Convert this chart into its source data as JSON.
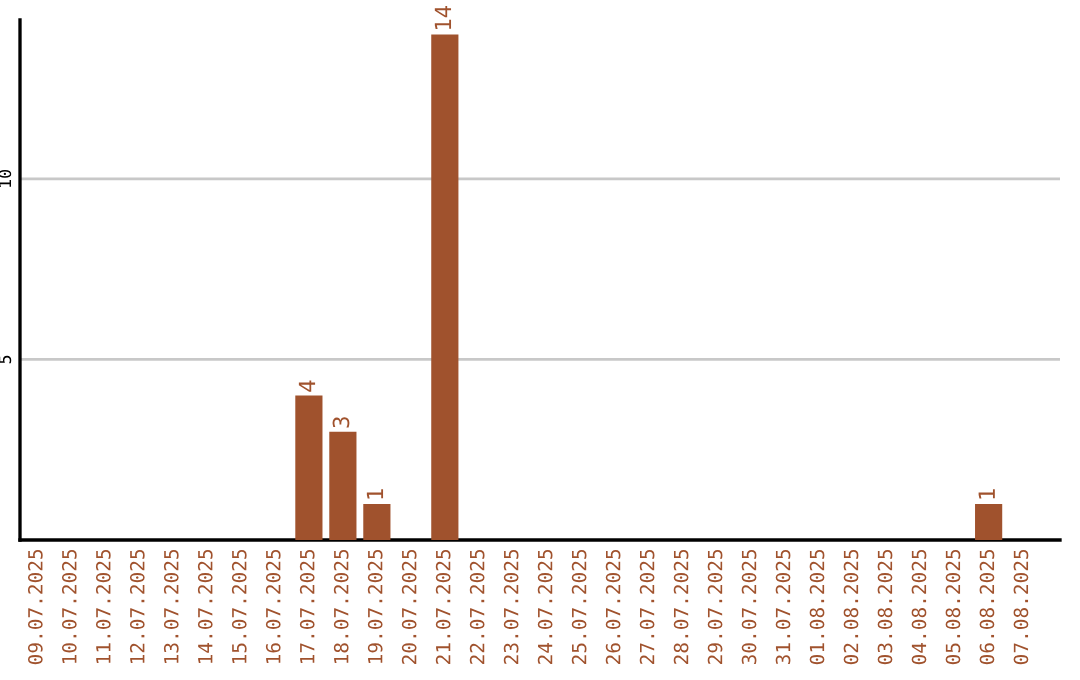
{
  "chart_data": {
    "type": "bar",
    "categories": [
      "09.07.2025",
      "10.07.2025",
      "11.07.2025",
      "12.07.2025",
      "13.07.2025",
      "14.07.2025",
      "15.07.2025",
      "16.07.2025",
      "17.07.2025",
      "18.07.2025",
      "19.07.2025",
      "20.07.2025",
      "21.07.2025",
      "22.07.2025",
      "23.07.2025",
      "24.07.2025",
      "25.07.2025",
      "26.07.2025",
      "27.07.2025",
      "28.07.2025",
      "29.07.2025",
      "30.07.2025",
      "31.07.2025",
      "01.08.2025",
      "02.08.2025",
      "03.08.2025",
      "04.08.2025",
      "05.08.2025",
      "06.08.2025",
      "07.08.2025"
    ],
    "values": [
      0,
      0,
      0,
      0,
      0,
      0,
      0,
      0,
      4,
      3,
      1,
      0,
      14,
      0,
      0,
      0,
      0,
      0,
      0,
      0,
      0,
      0,
      0,
      0,
      0,
      0,
      0,
      0,
      1,
      0
    ],
    "value_labels": [
      null,
      null,
      null,
      null,
      null,
      null,
      null,
      null,
      "4",
      "3",
      "1",
      null,
      "14",
      null,
      null,
      null,
      null,
      null,
      null,
      null,
      null,
      null,
      null,
      null,
      null,
      null,
      null,
      null,
      "1",
      null
    ],
    "color": "#a0522d",
    "ylim": [
      0,
      14.4
    ],
    "yticks": [
      5,
      10
    ],
    "grid": "y",
    "legend": false
  }
}
